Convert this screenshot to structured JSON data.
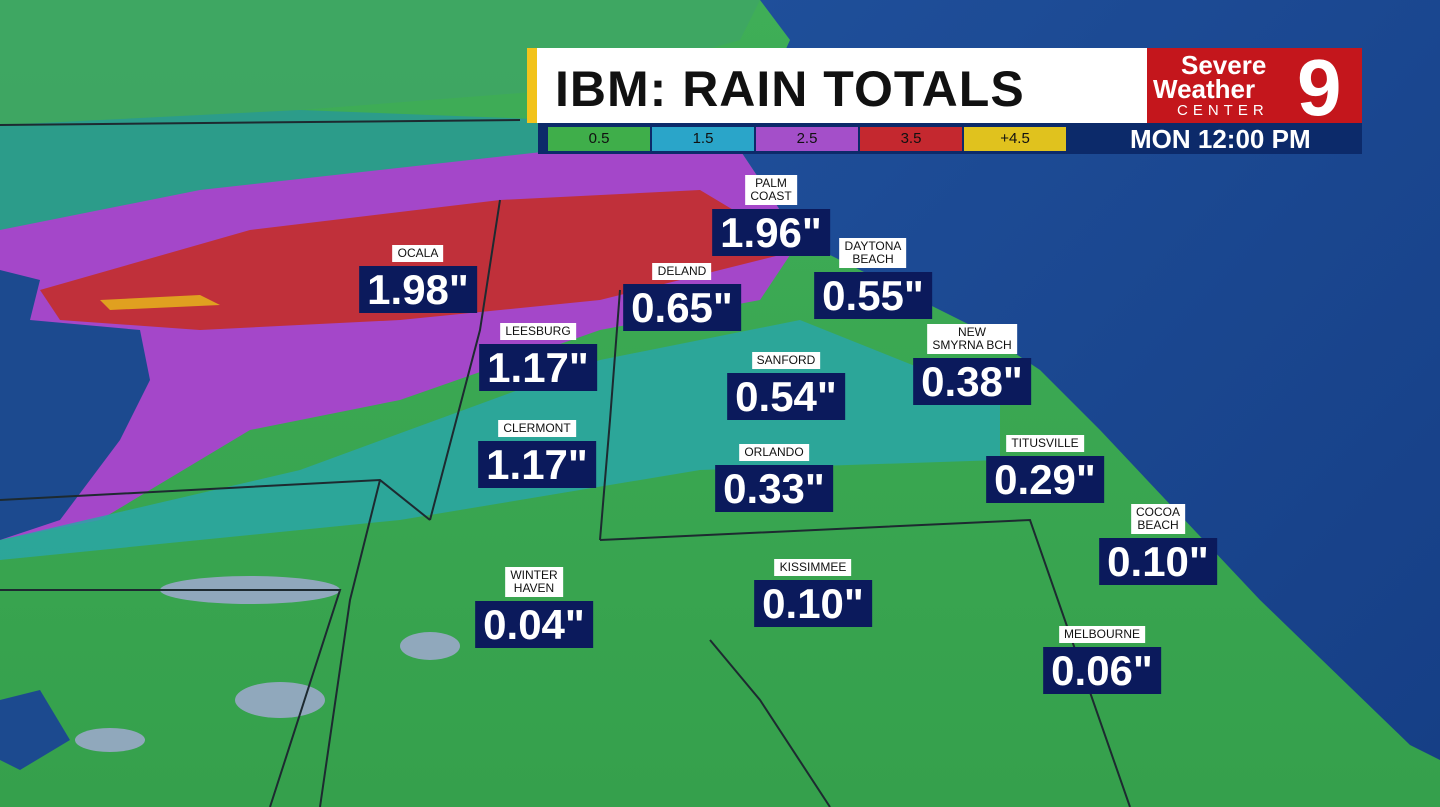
{
  "header": {
    "title": "IBM: RAIN TOTALS",
    "time": "MON 12:00 PM"
  },
  "logo": {
    "line1": "Severe",
    "line2": "Weather",
    "line3": "CENTER",
    "channel": "9"
  },
  "legend": {
    "labels": [
      "0.5",
      "1.5",
      "2.5",
      "3.5",
      "+4.5"
    ]
  },
  "cities": [
    {
      "name": [
        "OCALA"
      ],
      "total": "1.98\""
    },
    {
      "name": [
        "PALM",
        "COAST"
      ],
      "total": "1.96\""
    },
    {
      "name": [
        "DAYTONA",
        "BEACH"
      ],
      "total": "0.55\""
    },
    {
      "name": [
        "DELAND"
      ],
      "total": "0.65\""
    },
    {
      "name": [
        "LEESBURG"
      ],
      "total": "1.17\""
    },
    {
      "name": [
        "SANFORD"
      ],
      "total": "0.54\""
    },
    {
      "name": [
        "NEW",
        "SMYRNA BCH"
      ],
      "total": "0.38\""
    },
    {
      "name": [
        "CLERMONT"
      ],
      "total": "1.17\""
    },
    {
      "name": [
        "ORLANDO"
      ],
      "total": "0.33\""
    },
    {
      "name": [
        "TITUSVILLE"
      ],
      "total": "0.29\""
    },
    {
      "name": [
        "COCOA",
        "BEACH"
      ],
      "total": "0.10\""
    },
    {
      "name": [
        "WINTER",
        "HAVEN"
      ],
      "total": "0.04\""
    },
    {
      "name": [
        "KISSIMMEE"
      ],
      "total": "0.10\""
    },
    {
      "name": [
        "MELBOURNE"
      ],
      "total": "0.06\""
    }
  ]
}
